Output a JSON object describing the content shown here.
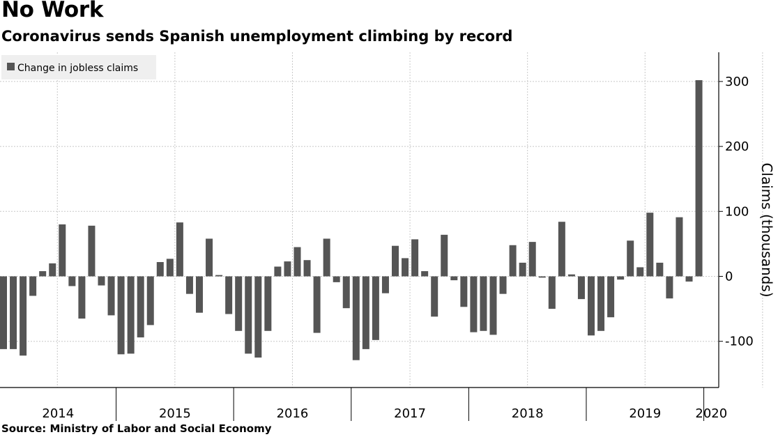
{
  "header": {
    "title": "No Work",
    "subtitle": "Coronavirus sends Spanish unemployment climbing by record"
  },
  "footer": {
    "source": "Source: Ministry of Labor and Social Economy"
  },
  "colors": {
    "bar": "#555555",
    "grid": "#c8c8c8",
    "legend_bg": "#efefef"
  },
  "chart_data": {
    "type": "bar",
    "legend": [
      "Change in jobless claims"
    ],
    "ylabel": "Claims (thousands)",
    "ylim": [
      -170,
      345
    ],
    "yticks": [
      300,
      200,
      100,
      0,
      -100
    ],
    "ytick_labels": [
      "300",
      "200",
      "100",
      "0",
      "-100"
    ],
    "year_labels": [
      "2014",
      "2015",
      "2016",
      "2017",
      "2018",
      "2019",
      "2020"
    ],
    "start": "2014-01",
    "series": [
      {
        "name": "Change in jobless claims",
        "values": [
          -112,
          -112,
          -122,
          -30,
          8,
          20,
          80,
          -15,
          -65,
          78,
          -14,
          -60,
          -120,
          -119,
          -94,
          -75,
          22,
          27,
          83,
          -27,
          -56,
          58,
          2,
          -58,
          -84,
          -119,
          -125,
          -84,
          15,
          23,
          45,
          25,
          -87,
          58,
          -9,
          -49,
          -129,
          -112,
          -98,
          -26,
          47,
          28,
          57,
          8,
          -62,
          64,
          -6,
          -47,
          -86,
          -84,
          -90,
          -27,
          48,
          21,
          53,
          -2,
          -50,
          84,
          3,
          -35,
          -91,
          -84,
          -63,
          -5,
          55,
          14,
          98,
          21,
          -34,
          91,
          -8,
          302
        ]
      }
    ]
  }
}
